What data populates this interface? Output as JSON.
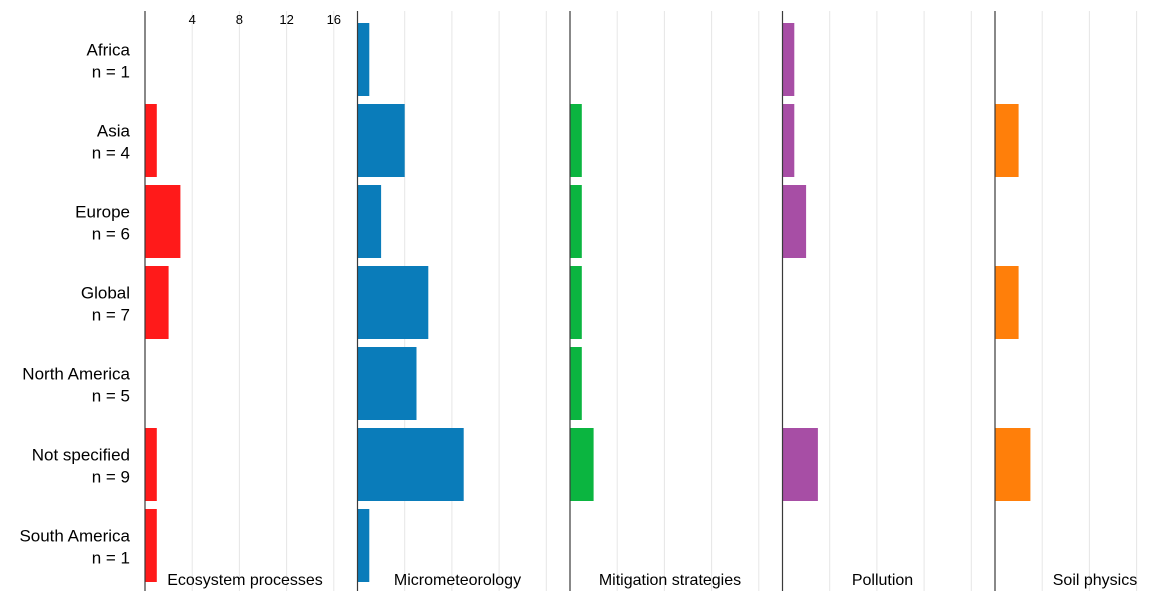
{
  "chart_data": {
    "type": "bar",
    "orientation": "horizontal",
    "categories": [
      {
        "name": "Africa",
        "n": "n = 1"
      },
      {
        "name": "Asia",
        "n": "n = 4"
      },
      {
        "name": "Europe",
        "n": "n = 6"
      },
      {
        "name": "Global",
        "n": "n = 7"
      },
      {
        "name": "North America",
        "n": "n = 5"
      },
      {
        "name": "Not specified",
        "n": "n = 9"
      },
      {
        "name": "South America",
        "n": "n = 1"
      }
    ],
    "x_ticks": [
      "4",
      "8",
      "12",
      "16"
    ],
    "xlim": [
      0,
      18
    ],
    "grid": true,
    "series": [
      {
        "name": "Ecosystem processes",
        "color": "#ff1a1a",
        "values": [
          0,
          1,
          3,
          2,
          0,
          1,
          1
        ]
      },
      {
        "name": "Micrometeorology",
        "color": "#0a7cba",
        "values": [
          1,
          4,
          2,
          6,
          5,
          9,
          1
        ]
      },
      {
        "name": "Mitigation strategies",
        "color": "#0bb540",
        "values": [
          0,
          1,
          1,
          1,
          1,
          2,
          0
        ]
      },
      {
        "name": "Pollution",
        "color": "#a74ea5",
        "values": [
          1,
          1,
          2,
          0,
          0,
          3,
          0
        ]
      },
      {
        "name": "Soil physics",
        "color": "#ff7f0a",
        "values": [
          0,
          2,
          0,
          2,
          0,
          3,
          0
        ]
      }
    ]
  }
}
